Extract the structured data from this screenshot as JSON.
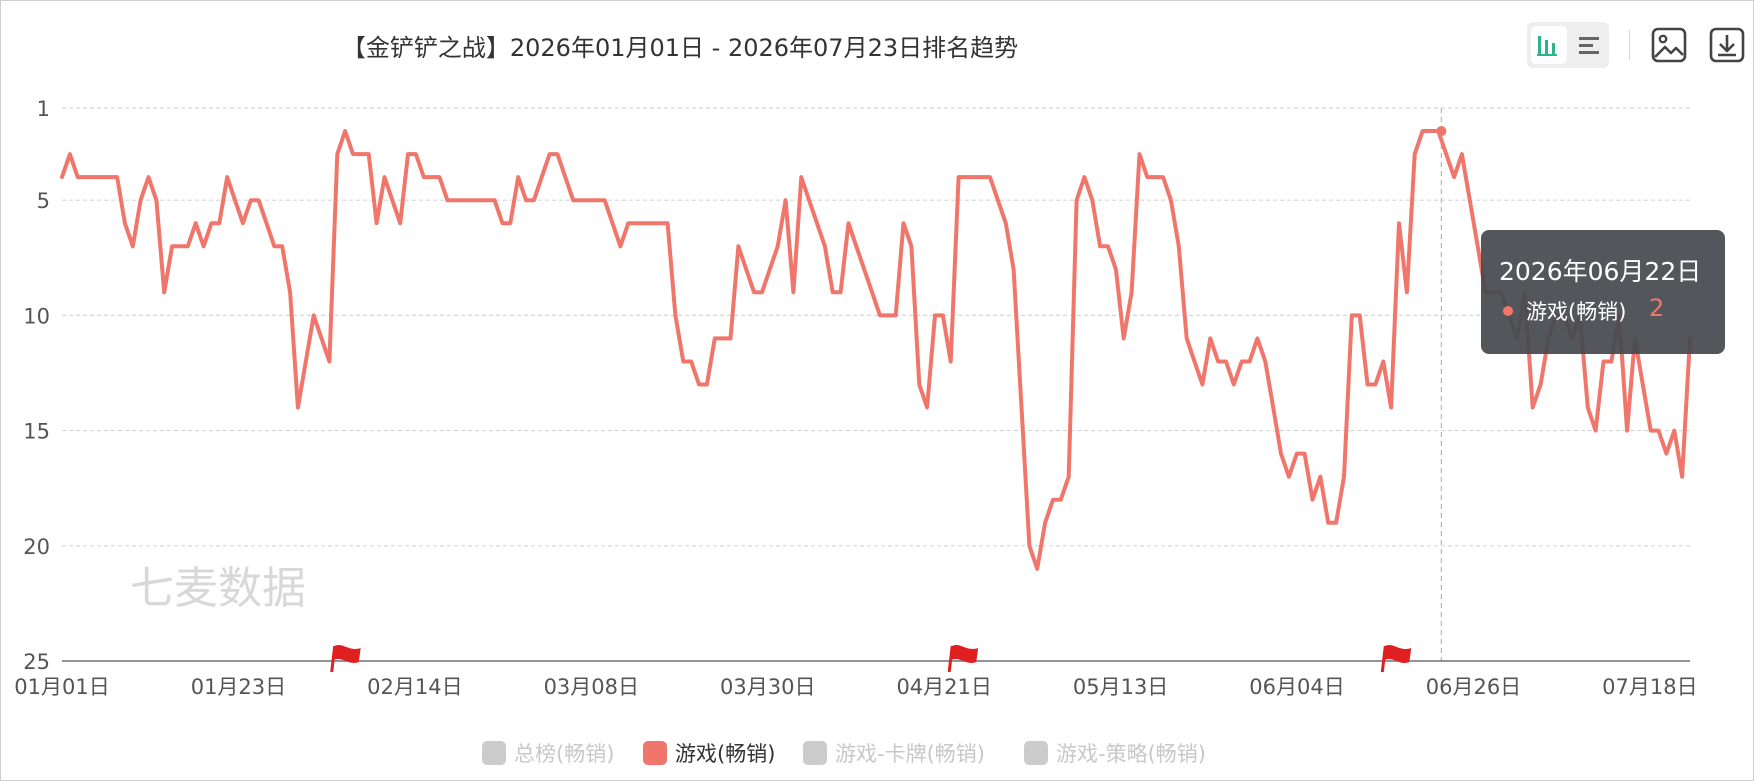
{
  "title": "【金铲铲之战】2026年01月01日 - 2026年07月23日排名趋势",
  "toolbar": {
    "icons": [
      "bar-chart-icon",
      "list-icon",
      "image-icon",
      "download-icon"
    ]
  },
  "watermark": "七麦数据",
  "tooltip": {
    "date": "2026年06月22日",
    "series": "游戏(畅销)",
    "value": "2"
  },
  "legend": [
    {
      "label": "总榜(畅销)",
      "color": "#cccccc",
      "active": false
    },
    {
      "label": "游戏(畅销)",
      "color": "#f0766b",
      "active": true
    },
    {
      "label": "游戏-卡牌(畅销)",
      "color": "#cccccc",
      "active": false
    },
    {
      "label": "游戏-策略(畅销)",
      "color": "#cccccc",
      "active": false
    }
  ],
  "colors": {
    "series": "#f0766b",
    "grid": "#d7d7d7",
    "axis": "#555555"
  },
  "chart_data": {
    "type": "line",
    "y_inverted": true,
    "ylim": [
      1,
      25
    ],
    "yticks": [
      1,
      5,
      10,
      15,
      20,
      25
    ],
    "xticks": [
      "01月01日",
      "01月23日",
      "02月14日",
      "03月08日",
      "03月30日",
      "04月21日",
      "05月13日",
      "06月04日",
      "06月26日",
      "07月18日"
    ],
    "x_start": "2026-01-01",
    "x_end": "2026-07-23",
    "grid": true,
    "legend_position": "bottom",
    "flags": [
      "2026-02-04",
      "2026-04-22",
      "2026-06-15"
    ],
    "highlight": {
      "date": "2026-06-22",
      "value": 2
    },
    "series": [
      {
        "name": "游戏(畅销)",
        "values": [
          4,
          3,
          4,
          4,
          4,
          4,
          4,
          4,
          6,
          7,
          5,
          4,
          5,
          9,
          7,
          7,
          7,
          6,
          7,
          6,
          6,
          4,
          5,
          6,
          5,
          5,
          6,
          7,
          7,
          9,
          14,
          12,
          10,
          11,
          12,
          3,
          2,
          3,
          3,
          3,
          6,
          4,
          5,
          6,
          3,
          3,
          4,
          4,
          4,
          5,
          5,
          5,
          5,
          5,
          5,
          5,
          6,
          6,
          4,
          5,
          5,
          4,
          3,
          3,
          4,
          5,
          5,
          5,
          5,
          5,
          6,
          7,
          6,
          6,
          6,
          6,
          6,
          6,
          10,
          12,
          12,
          13,
          13,
          11,
          11,
          11,
          7,
          8,
          9,
          9,
          8,
          7,
          5,
          9,
          4,
          5,
          6,
          7,
          9,
          9,
          6,
          7,
          8,
          9,
          10,
          10,
          10,
          6,
          7,
          13,
          14,
          10,
          10,
          12,
          4,
          4,
          4,
          4,
          4,
          5,
          6,
          8,
          14,
          20,
          21,
          19,
          18,
          18,
          17,
          5,
          4,
          5,
          7,
          7,
          8,
          11,
          9,
          3,
          4,
          4,
          4,
          5,
          7,
          11,
          12,
          13,
          11,
          12,
          12,
          13,
          12,
          12,
          11,
          12,
          14,
          16,
          17,
          16,
          16,
          18,
          17,
          19,
          19,
          17,
          10,
          10,
          13,
          13,
          12,
          14,
          6,
          9,
          3,
          2,
          2,
          2,
          3,
          4,
          3,
          5,
          7,
          9,
          9,
          9,
          10,
          11,
          9,
          14,
          13,
          11,
          10,
          10,
          11,
          10,
          14,
          15,
          12,
          12,
          10,
          15,
          11,
          13,
          15,
          15,
          16,
          15,
          17,
          11
        ]
      }
    ]
  }
}
